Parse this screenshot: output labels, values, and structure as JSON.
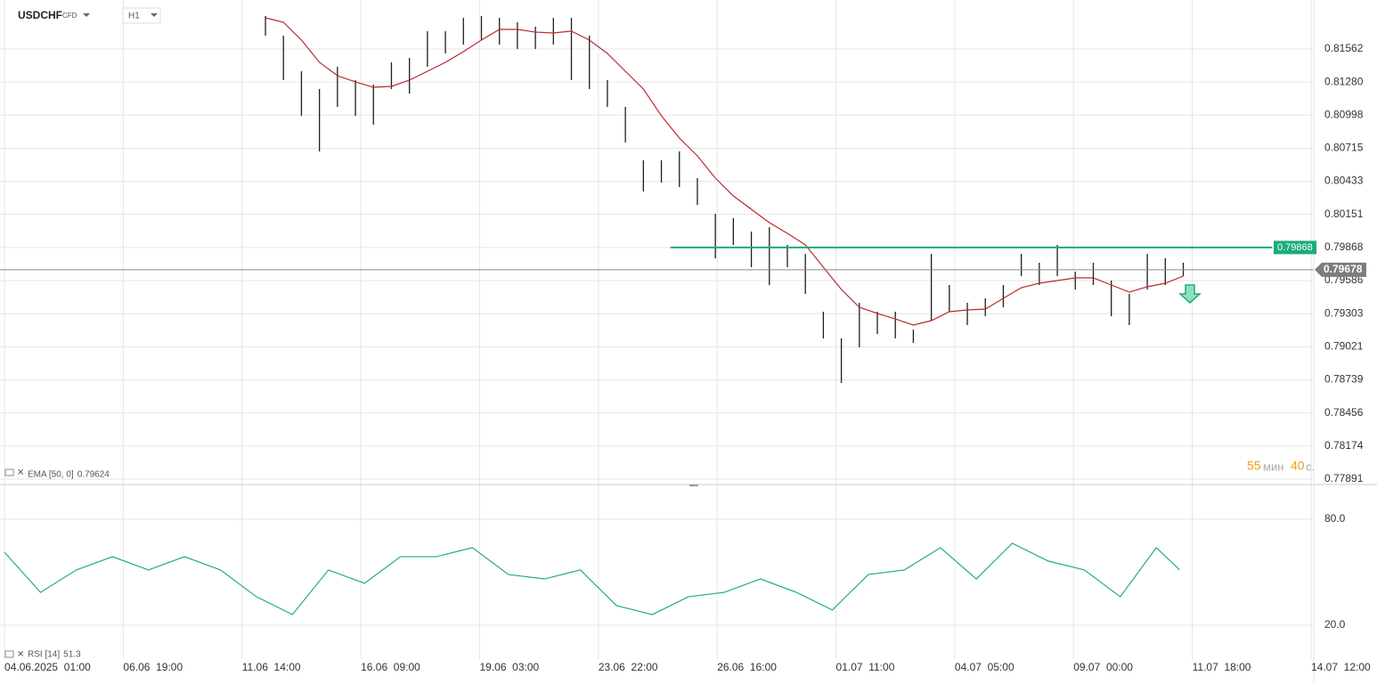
{
  "header": {
    "symbol": "USDCHF",
    "instrument": "CFD",
    "timeframe": "H1"
  },
  "timer": {
    "minutes": 55,
    "minutes_unit": "мин",
    "seconds": 40,
    "seconds_unit": "с."
  },
  "chart_data": [
    {
      "type": "hilo",
      "x": [
        145,
        155,
        165,
        175,
        185,
        195,
        205,
        215,
        225,
        235,
        245,
        255,
        265,
        275,
        285,
        295,
        305,
        315,
        325,
        335,
        345,
        355,
        365,
        375,
        385,
        395,
        405,
        415,
        425,
        435,
        445,
        455,
        465,
        475,
        485,
        495,
        505,
        515,
        525,
        535,
        545,
        555,
        565,
        575,
        585,
        595,
        605,
        615,
        625,
        635,
        645,
        655
      ],
      "high": [
        0.81843,
        0.81676,
        0.81372,
        0.8122,
        0.8141,
        0.81296,
        0.81258,
        0.81448,
        0.81486,
        0.81714,
        0.81714,
        0.81828,
        0.81843,
        0.81828,
        0.8179,
        0.81752,
        0.81828,
        0.81828,
        0.81676,
        0.81296,
        0.81068,
        0.80612,
        0.80612,
        0.80688,
        0.8046,
        0.80156,
        0.80118,
        0.80004,
        0.80042,
        0.7989,
        0.79814,
        0.7932,
        0.79092,
        0.79396,
        0.7932,
        0.7932,
        0.79168,
        0.79814,
        0.79548,
        0.79396,
        0.79434,
        0.79548,
        0.79814,
        0.79738,
        0.7989,
        0.79662,
        0.79738,
        0.79586,
        0.79472,
        0.79814,
        0.79776,
        0.79738
      ],
      "low": [
        0.81676,
        0.81296,
        0.80992,
        0.80688,
        0.81068,
        0.80992,
        0.80916,
        0.8122,
        0.81182,
        0.8141,
        0.81524,
        0.816,
        0.81638,
        0.816,
        0.81562,
        0.81562,
        0.816,
        0.81296,
        0.8122,
        0.81068,
        0.80764,
        0.80346,
        0.80422,
        0.80384,
        0.80232,
        0.79776,
        0.7989,
        0.797,
        0.79548,
        0.797,
        0.79472,
        0.79092,
        0.78712,
        0.79016,
        0.7913,
        0.79092,
        0.79054,
        0.79244,
        0.7932,
        0.79206,
        0.79282,
        0.79358,
        0.79624,
        0.79548,
        0.79624,
        0.7951,
        0.79548,
        0.79282,
        0.79206,
        0.7951,
        0.79548,
        0.79624
      ],
      "color": "#1e1e1e",
      "ema": {
        "label": "EMA [50, 0]",
        "last_value": 0.79624,
        "color": "#c0262d",
        "values": [
          0.81828,
          0.8179,
          0.81638,
          0.81448,
          0.81334,
          0.81281,
          0.81235,
          0.81243,
          0.81296,
          0.81372,
          0.81448,
          0.81539,
          0.81638,
          0.81729,
          0.81729,
          0.81706,
          0.81699,
          0.81714,
          0.81638,
          0.81524,
          0.81372,
          0.8122,
          0.80992,
          0.80802,
          0.8065,
          0.8046,
          0.80308,
          0.80194,
          0.8008,
          0.79989,
          0.7989,
          0.797,
          0.7951,
          0.79358,
          0.79305,
          0.79259,
          0.79206,
          0.79244,
          0.7932,
          0.79335,
          0.79343,
          0.79434,
          0.79525,
          0.79563,
          0.79586,
          0.79609,
          0.79609,
          0.79548,
          0.79487,
          0.79533,
          0.79563,
          0.79624
        ]
      },
      "level": {
        "value": 0.79868,
        "color": "#1bab7c",
        "x_start": 370
      },
      "current_price": 0.79678,
      "xlim": [
        -2.5,
        727.5
      ],
      "xticks": [
        {
          "value": 0,
          "label": "04.06.2025  01:00"
        },
        {
          "value": 66,
          "label": "06.06  19:00"
        },
        {
          "value": 132,
          "label": "11.06  14:00"
        },
        {
          "value": 198,
          "label": "16.06  09:00"
        },
        {
          "value": 264,
          "label": "19.06  03:00"
        },
        {
          "value": 330,
          "label": "23.06  22:00"
        },
        {
          "value": 396,
          "label": "26.06  16:00"
        },
        {
          "value": 462,
          "label": "01.07  11:00"
        },
        {
          "value": 528,
          "label": "04.07  05:00"
        },
        {
          "value": 594,
          "label": "09.07  00:00"
        },
        {
          "value": 660,
          "label": "11.07  18:00"
        },
        {
          "value": 726,
          "label": "14.07  12:00"
        }
      ],
      "ylim": [
        0.77838,
        0.8198
      ],
      "yticks": [
        0.81562,
        {
          "value": 0.8128,
          "label": "0.81280"
        },
        0.80998,
        0.80715,
        0.80433,
        0.80151,
        0.79868,
        0.79586,
        0.79303,
        0.79021,
        0.78739,
        0.78456,
        0.78174,
        0.77891
      ],
      "grid": true
    },
    {
      "type": "line",
      "label": "RSI [14]",
      "color": "#1fae7f",
      "x": [
        0,
        20,
        40,
        60,
        80,
        100,
        120,
        140,
        160,
        180,
        200,
        220,
        240,
        260,
        280,
        300,
        320,
        340,
        360,
        380,
        400,
        420,
        440,
        460,
        480,
        500,
        520,
        540,
        560,
        580,
        600,
        620,
        640,
        653
      ],
      "values": [
        61.3,
        38.6,
        51.3,
        58.8,
        51.3,
        58.8,
        51.3,
        36.1,
        26.0,
        51.3,
        43.7,
        58.8,
        58.8,
        63.9,
        48.7,
        46.2,
        51.3,
        31.1,
        26.0,
        36.1,
        38.6,
        46.2,
        38.6,
        28.6,
        48.7,
        51.3,
        63.9,
        46.2,
        66.4,
        56.3,
        51.3,
        36.1,
        63.9,
        51.3
      ],
      "xlim": [
        -2.5,
        727.5
      ],
      "ylim": [
        0.8,
        99.2
      ],
      "yticks": [
        {
          "value": 80,
          "label": "80.0"
        },
        {
          "value": 20,
          "label": "20.0"
        }
      ],
      "grid": true
    }
  ]
}
